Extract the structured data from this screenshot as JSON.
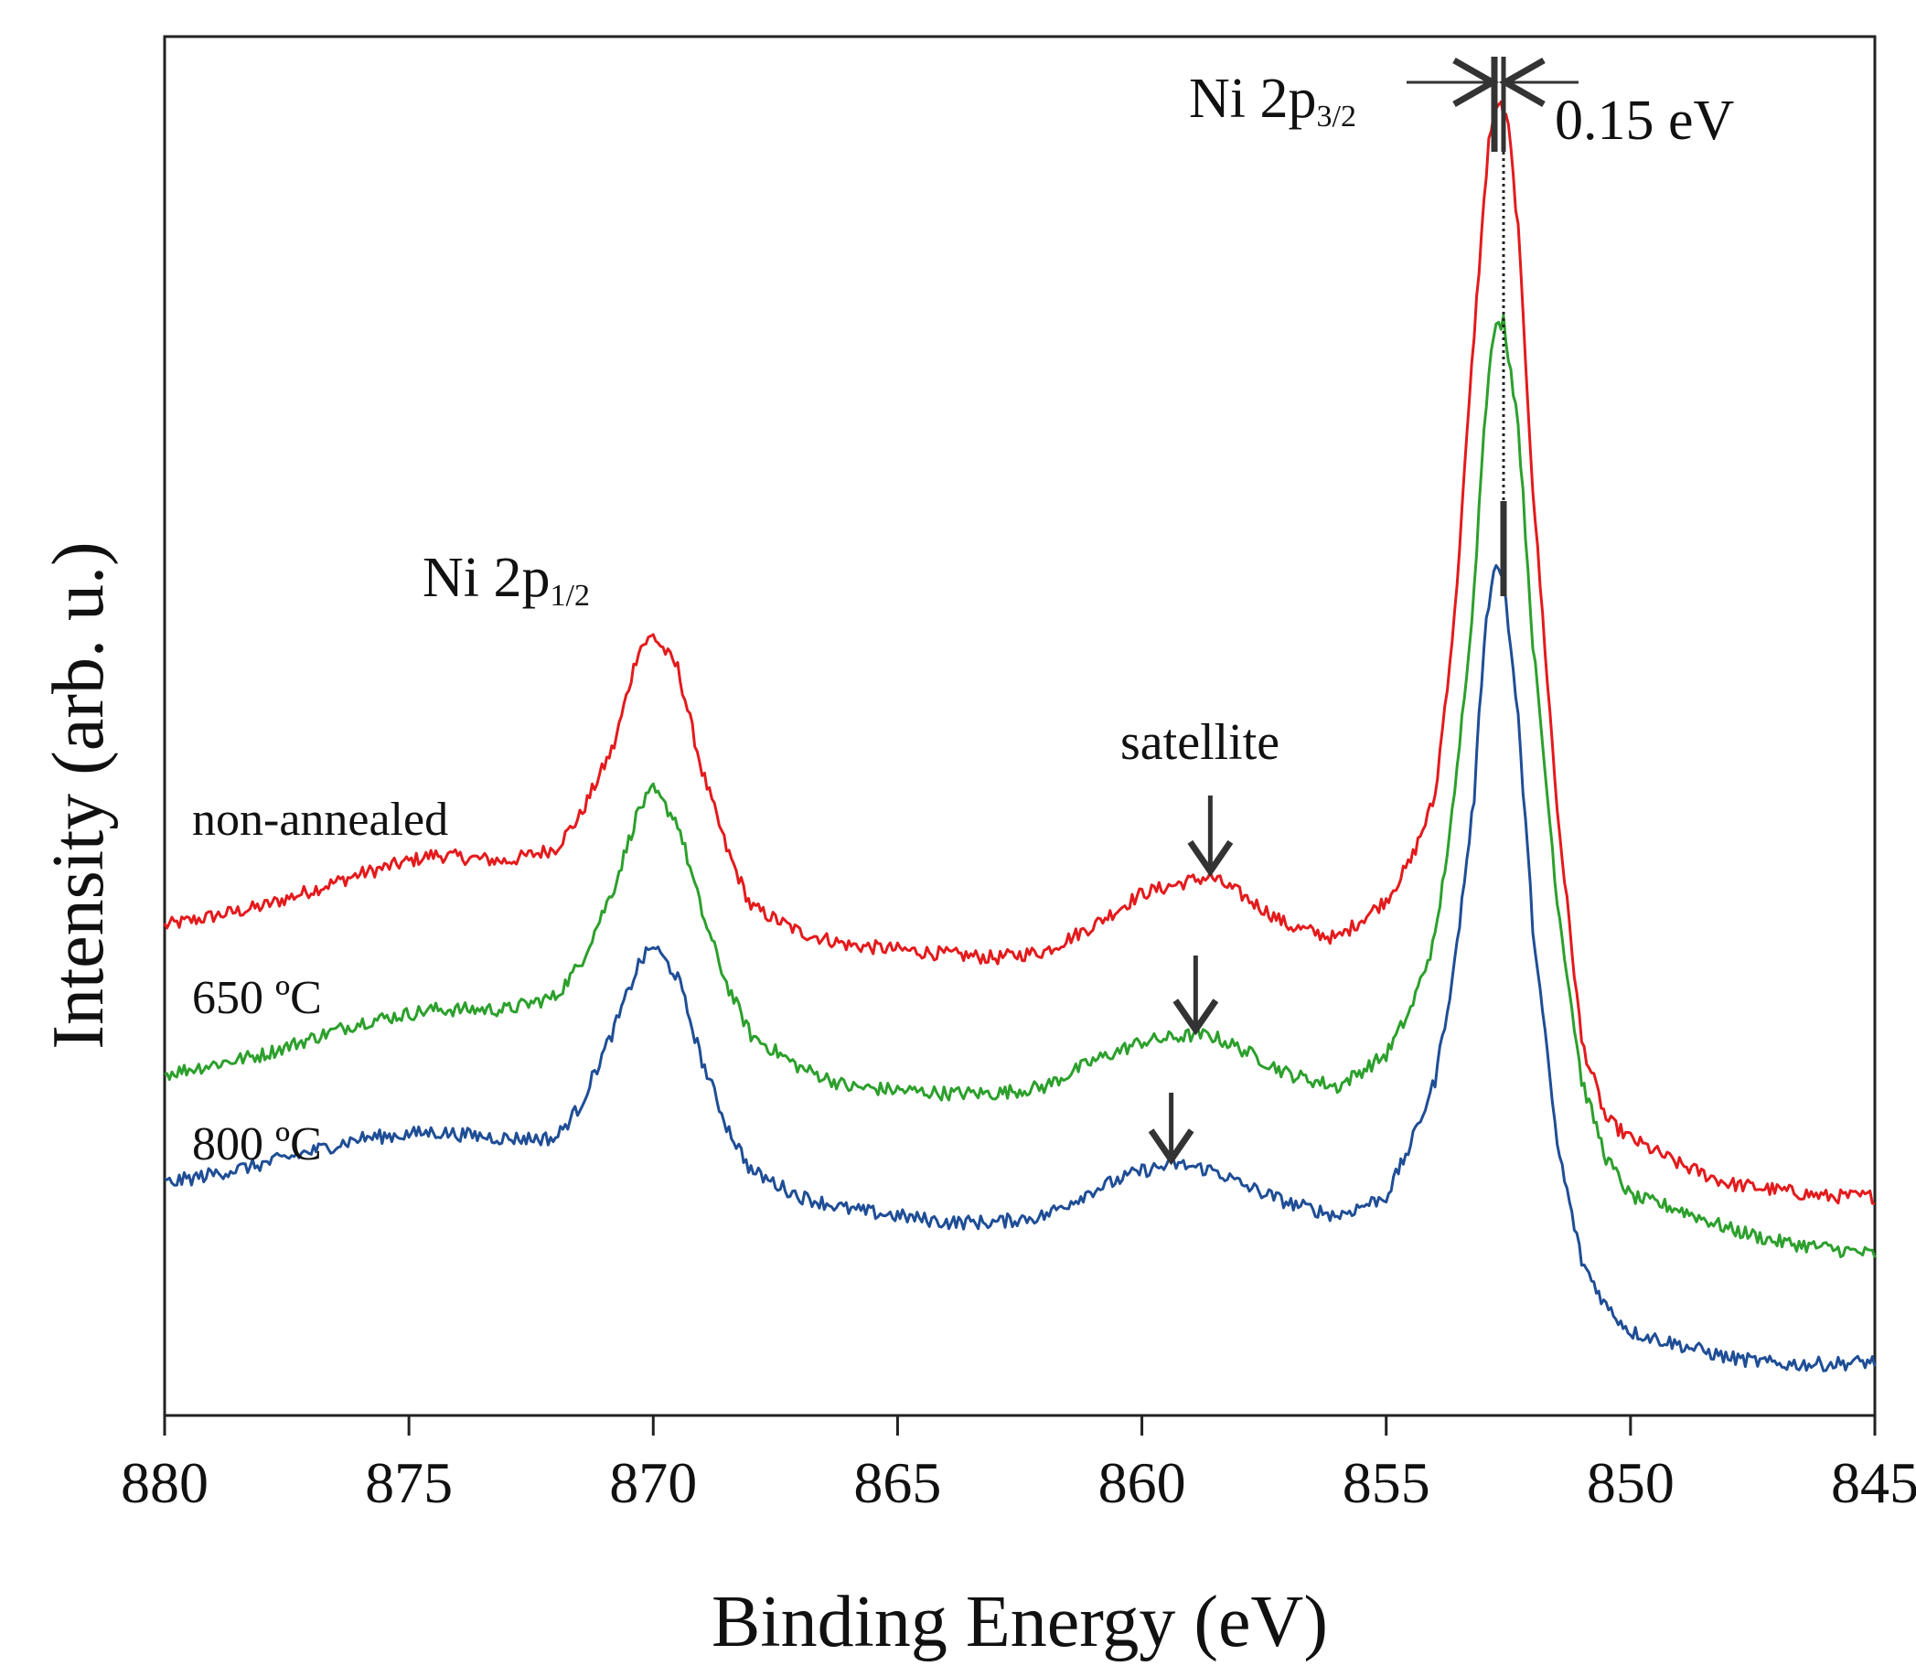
{
  "chart_data": {
    "type": "line",
    "title": "",
    "xlabel": "Binding Energy (eV)",
    "ylabel": "Intensity (arb. u.)",
    "xlim": [
      880,
      845
    ],
    "ylim": [
      0,
      100
    ],
    "x_reversed": true,
    "xticks": [
      880,
      875,
      870,
      865,
      860,
      855,
      850,
      845
    ],
    "yticks_visible": false,
    "grid": false,
    "legend": "none",
    "series": [
      {
        "name": "non-annealed",
        "color": "#e41a1c",
        "x": [
          880,
          878,
          876,
          874.5,
          873,
          872,
          871.5,
          870.8,
          870.3,
          870.0,
          869.5,
          869.0,
          868.5,
          868.0,
          867,
          866,
          864,
          863,
          862,
          861,
          860,
          859,
          858.6,
          858,
          857,
          856,
          855,
          854.5,
          854,
          853.6,
          853.2,
          853.0,
          852.9,
          852.7,
          852.5,
          852.3,
          852.0,
          851.5,
          851.0,
          850.5,
          850,
          849,
          848,
          847,
          846,
          845
        ],
        "y": [
          36,
          37.5,
          40,
          41.5,
          41,
          42,
          44.5,
          50,
          57.5,
          58.5,
          56,
          48,
          42,
          37.5,
          35.5,
          34.5,
          33.8,
          33.5,
          34,
          36,
          38.5,
          39.5,
          39.8,
          38.5,
          36,
          35,
          38,
          41,
          46,
          60,
          82,
          92,
          97,
          100,
          98,
          90,
          70,
          45,
          27,
          21,
          19.5,
          17.5,
          16,
          15.5,
          15,
          15
        ]
      },
      {
        "name": "650 ºC",
        "color": "#2ca02c",
        "x": [
          880,
          878,
          876,
          874.5,
          873,
          872,
          871.5,
          870.8,
          870.3,
          870.0,
          869.5,
          869.0,
          868.5,
          868.0,
          867,
          866,
          864,
          863,
          862,
          861,
          860,
          859,
          858.6,
          858,
          857,
          856,
          855,
          854.5,
          854,
          853.6,
          853.2,
          853.0,
          852.8,
          852.6,
          852.3,
          852.0,
          851.5,
          851.0,
          850.5,
          850,
          849,
          848,
          847,
          846,
          845
        ],
        "y": [
          24.5,
          26,
          28.5,
          29.5,
          29.5,
          30.5,
          33,
          39,
          45,
          46.5,
          44,
          37,
          31.5,
          27.5,
          25,
          23.5,
          23,
          23,
          23.5,
          25.5,
          27,
          27.5,
          27.5,
          26.5,
          24.5,
          23.5,
          26,
          29.5,
          35,
          46,
          62,
          75,
          82,
          83,
          75,
          58,
          38,
          24,
          18,
          15,
          14,
          12.5,
          11.5,
          11,
          10.5
        ]
      },
      {
        "name": "800 ºC",
        "color": "#1f4e96",
        "x": [
          880,
          878,
          876,
          874.5,
          873,
          872,
          871.5,
          870.8,
          870.3,
          870.0,
          869.5,
          869.0,
          868.5,
          868.0,
          867,
          866,
          864,
          863,
          862,
          861,
          860,
          859.3,
          858.5,
          858,
          857,
          856,
          855,
          854.5,
          854,
          853.6,
          853.2,
          853.0,
          852.8,
          852.6,
          852.3,
          852.0,
          851.5,
          851.0,
          850.5,
          850,
          849,
          848,
          847,
          846,
          845
        ],
        "y": [
          16,
          17.5,
          19.5,
          20,
          19.5,
          19.5,
          22,
          28,
          33,
          34.5,
          32,
          25.5,
          20.5,
          17,
          15,
          14,
          13,
          13,
          13.5,
          15.5,
          17,
          17.5,
          17,
          16,
          14.5,
          13.5,
          15,
          19,
          24,
          33,
          46,
          58,
          64,
          63,
          52,
          36,
          19,
          10,
          6.5,
          4.5,
          3.5,
          2.5,
          2,
          2,
          2.2
        ]
      }
    ],
    "annotations": {
      "peak_high": "Ni 2p",
      "peak_high_subscript": "3/2",
      "peak_low": "Ni 2p",
      "peak_low_subscript": "1/2",
      "satellite": "satellite",
      "shift": "0.15 eV"
    },
    "satellite_arrow_x": [
      858.6,
      858.9,
      859.4
    ],
    "peak_marker_x": [
      852.7,
      852.55
    ]
  }
}
